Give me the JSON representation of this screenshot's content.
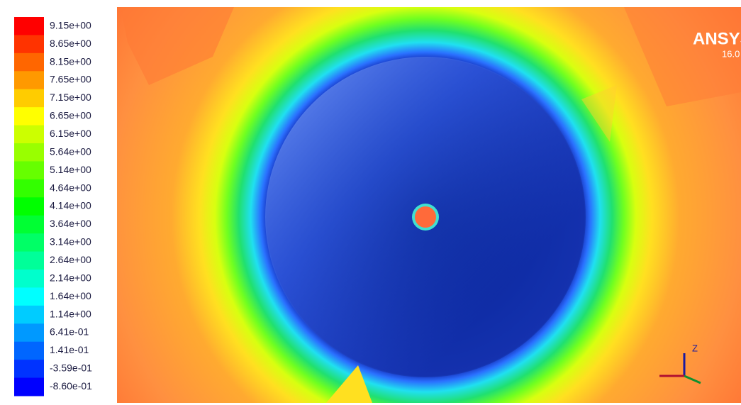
{
  "legend": {
    "labels": [
      "9.15e+00",
      "8.65e+00",
      "8.15e+00",
      "7.65e+00",
      "7.15e+00",
      "6.65e+00",
      "6.15e+00",
      "5.64e+00",
      "5.14e+00",
      "4.64e+00",
      "4.14e+00",
      "3.64e+00",
      "3.14e+00",
      "2.64e+00",
      "2.14e+00",
      "1.64e+00",
      "1.14e+00",
      "6.41e-01",
      "1.41e-01",
      "-3.59e-01",
      "-8.60e-01"
    ]
  },
  "logo": {
    "brand": "ANSYS",
    "version": "16.0"
  },
  "triad": {
    "axis_label": "Z"
  }
}
